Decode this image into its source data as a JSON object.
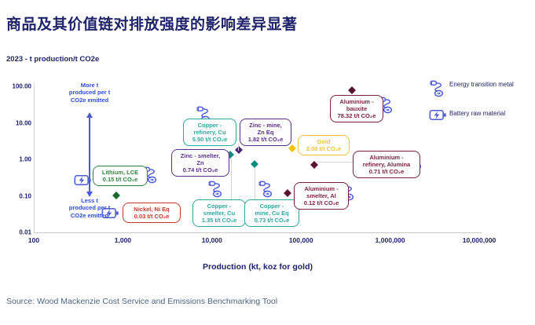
{
  "header": {
    "title": "商品及其价值链对排放强度的影响差异显著"
  },
  "source": {
    "text": "Source: Wood Mackenzie Cost Service and Emissions Benchmarking Tool"
  },
  "legend": {
    "items": [
      {
        "icon": "plug",
        "label": "Energy transition metal"
      },
      {
        "icon": "battery",
        "label": "Battery raw material"
      }
    ]
  },
  "annotations": {
    "more": "More t\nproduced per t\nCO2e emitted",
    "less": "Less t\nproduced per t\nCO2e emitted"
  },
  "chart_data": {
    "type": "scatter",
    "y_axis_title": "2023 - t production/t CO2e",
    "xlabel": "Production (kt, koz for gold)",
    "x_scale": "log",
    "y_scale": "log",
    "x_range": [
      100,
      10000000
    ],
    "y_range": [
      0.01,
      100
    ],
    "x_ticks": [
      "100",
      "1,000",
      "10,000",
      "100,000",
      "1,000,000",
      "10,000,000"
    ],
    "y_ticks": [
      "100.00",
      "10.00",
      "1.00",
      "0.10",
      "0.01"
    ],
    "grid": false,
    "legend_position": "top-right",
    "points": [
      {
        "id": "lithium",
        "label_lines": [
          "Lithium, LCE"
        ],
        "value_label": "0.15 t/t CO₂e",
        "intensity": 0.15,
        "production_est": 840,
        "category": "green",
        "icons": [
          "battery",
          "plug"
        ]
      },
      {
        "id": "nickel",
        "label_lines": [
          "Nickel, Ni Eq"
        ],
        "value_label": "0.03 t/t CO₂e",
        "intensity": 0.03,
        "production_est": 3800,
        "category": "red",
        "icons": [
          "battery"
        ]
      },
      {
        "id": "copper_refinery",
        "label_lines": [
          "Copper -",
          "refinery, Cu"
        ],
        "value_label": "5.50 t/t CO₂e",
        "intensity": 5.5,
        "production_est": 17000,
        "category": "teal",
        "icons": [
          "plug"
        ]
      },
      {
        "id": "zinc_smelter",
        "label_lines": [
          "Zinc - smelter,",
          "Zn"
        ],
        "value_label": "0.74 t/t CO₂e",
        "intensity": 0.74,
        "production_est": 14000,
        "category": "purple",
        "icons": []
      },
      {
        "id": "zinc_mine",
        "label_lines": [
          "Zinc - mine,",
          "Zn Eq"
        ],
        "value_label": "1.82 t/t CO₂e",
        "intensity": 1.82,
        "production_est": 20000,
        "category": "purple",
        "icons": []
      },
      {
        "id": "copper_smelter",
        "label_lines": [
          "Copper -",
          "smelter, Cu"
        ],
        "value_label": "1.35 t/t CO₂e",
        "intensity": 1.35,
        "production_est": 16000,
        "category": "teal",
        "icons": [
          "plug"
        ]
      },
      {
        "id": "copper_mine",
        "label_lines": [
          "Copper -",
          "mine, Cu Eq"
        ],
        "value_label": "0.73 t/t CO₂e",
        "intensity": 0.73,
        "production_est": 30000,
        "category": "teal",
        "icons": [
          "plug"
        ]
      },
      {
        "id": "gold",
        "label_lines": [
          "Gold"
        ],
        "value_label": "2.00 t/t CO₂e",
        "intensity": 2.0,
        "production_est": 80000,
        "category": "yellow",
        "icons": []
      },
      {
        "id": "al_bauxite",
        "label_lines": [
          "Aluminium -",
          "bauxite"
        ],
        "value_label": "78.32 t/t CO₂e",
        "intensity": 78.32,
        "production_est": 370000,
        "category": "maroon",
        "icons": [
          "plug"
        ]
      },
      {
        "id": "al_smelter",
        "label_lines": [
          "Aluminium -",
          "smelter, Al"
        ],
        "value_label": "0.12 t/t CO₂e",
        "intensity": 0.12,
        "production_est": 70000,
        "category": "maroon",
        "icons": [
          "plug"
        ]
      },
      {
        "id": "al_refinery",
        "label_lines": [
          "Aluminium -",
          "refinery, Alumina"
        ],
        "value_label": "0.71 t/t CO₂e",
        "intensity": 0.71,
        "production_est": 140000,
        "category": "maroon",
        "icons": [
          "plug"
        ]
      }
    ]
  },
  "colors": {
    "green": {
      "box": "#2e8540",
      "marker": "#1c6b2e"
    },
    "red": {
      "box": "#c0392b",
      "marker": "#c02020"
    },
    "teal": {
      "box": "#2aa79e",
      "marker": "#0f8a81"
    },
    "purple": {
      "box": "#5b2d8e",
      "marker": "#4a2277"
    },
    "yellow": {
      "box": "#f2c233",
      "marker": "#f6c200"
    },
    "maroon": {
      "box": "#7a1f3d",
      "marker": "#5a1430"
    },
    "icon_blue": "#4a5ad8",
    "navy": "#1f2369",
    "annotation_blue": "#2e4bdb"
  }
}
